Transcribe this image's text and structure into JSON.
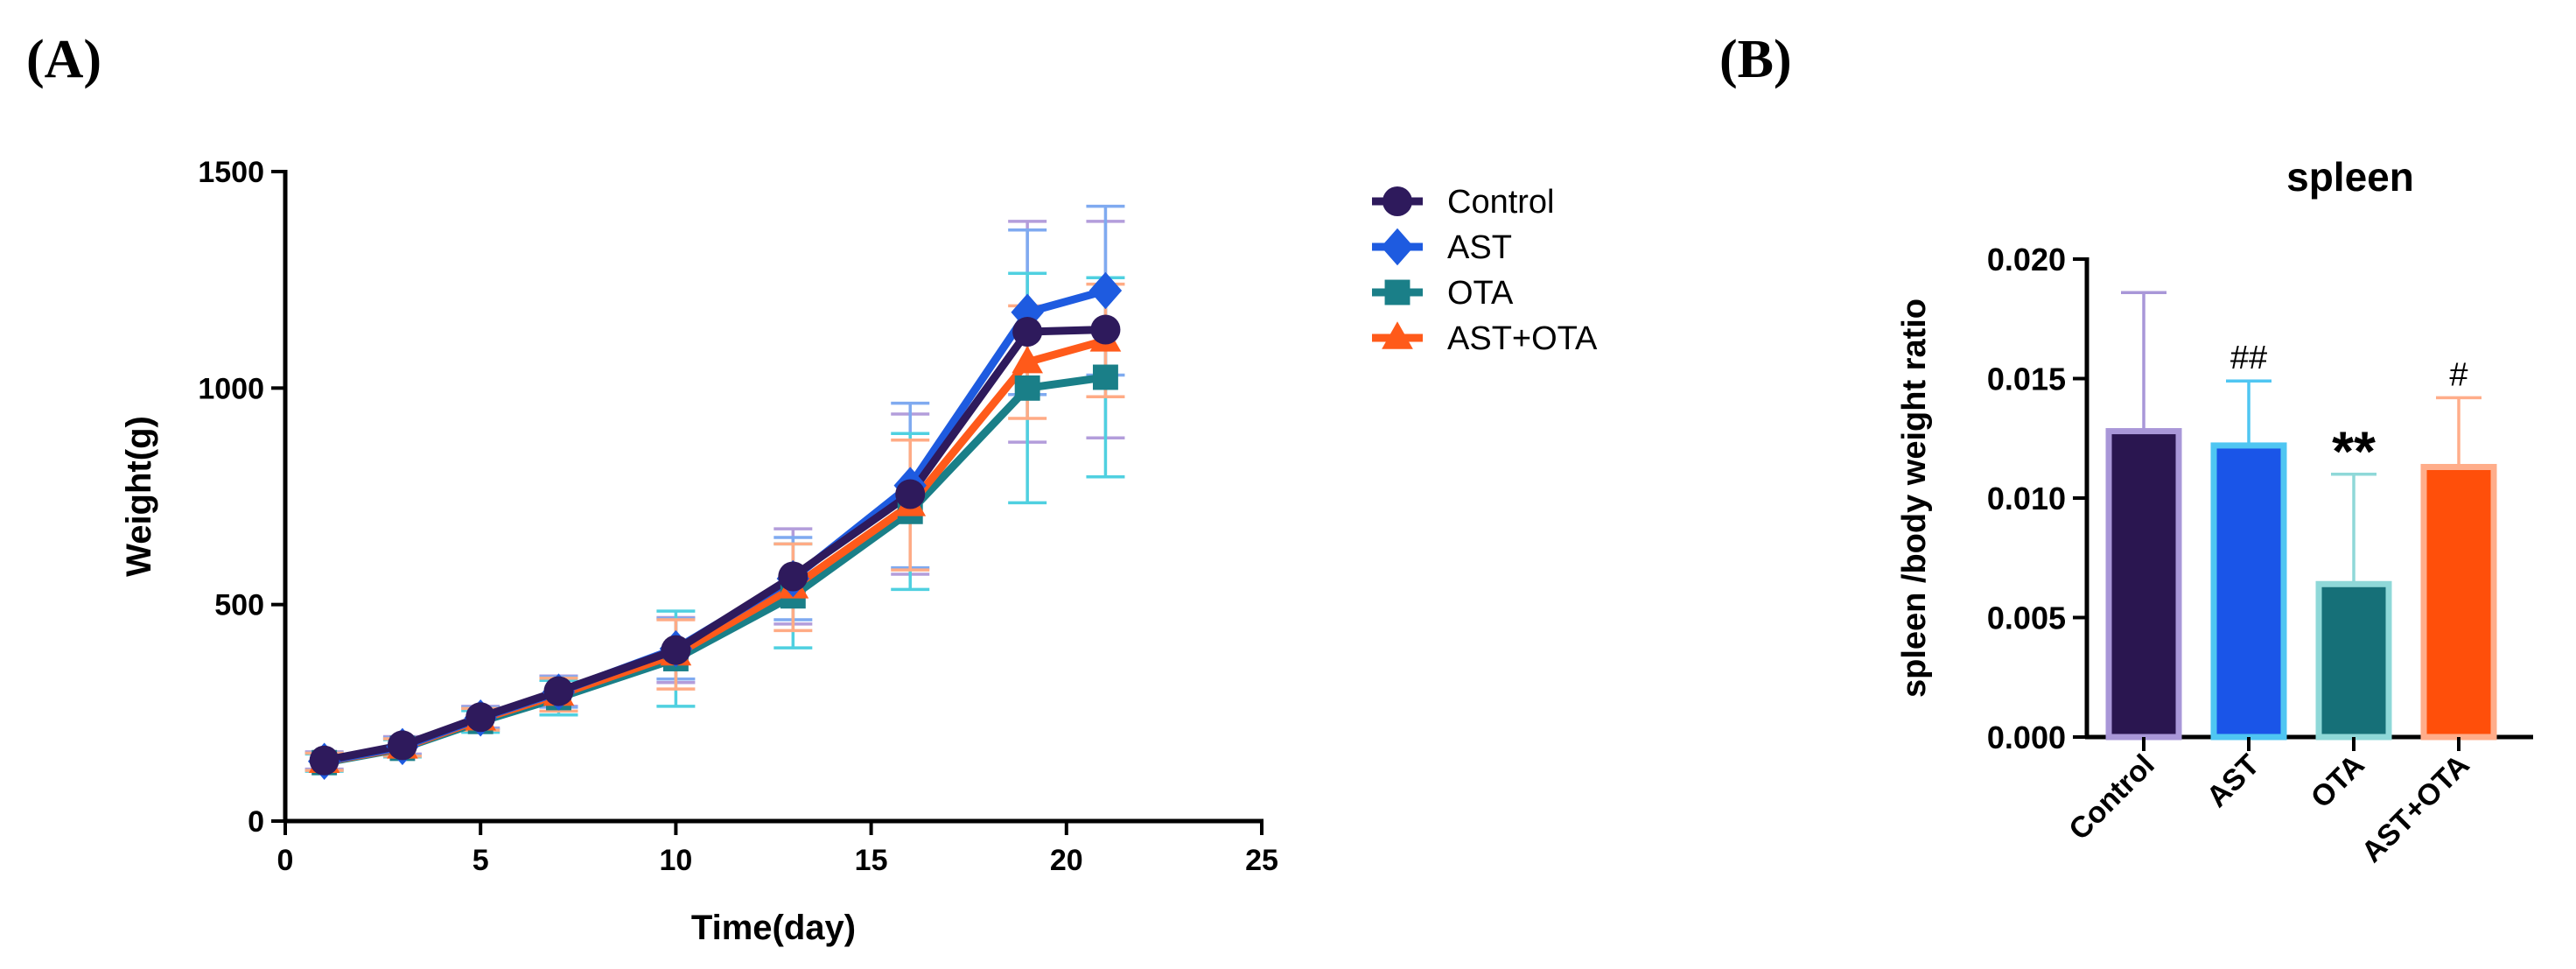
{
  "panel_labels": {
    "a": "(A)",
    "b": "(B)"
  },
  "chart_data": [
    {
      "type": "line",
      "panel": "(A)",
      "xlabel": "Time(day)",
      "ylabel": "Weight(g)",
      "xlim": [
        0,
        25
      ],
      "ylim": [
        0,
        1500
      ],
      "xticks": [
        0,
        5,
        10,
        15,
        20,
        25
      ],
      "yticks": [
        0,
        500,
        1000,
        1500
      ],
      "x": [
        1,
        3,
        5,
        7,
        10,
        13,
        16,
        19,
        21
      ],
      "series": [
        {
          "name": "Control",
          "color": "#2e1a5c",
          "errcolor": "#b39ddb",
          "marker": "circle",
          "values": [
            140,
            175,
            240,
            300,
            395,
            565,
            755,
            1130,
            1135
          ],
          "errors": [
            20,
            20,
            25,
            35,
            75,
            110,
            185,
            255,
            250
          ]
        },
        {
          "name": "AST",
          "color": "#1e5be0",
          "errcolor": "#7faaf0",
          "marker": "diamond",
          "values": [
            138,
            172,
            238,
            298,
            398,
            560,
            775,
            1175,
            1225
          ],
          "errors": [
            20,
            20,
            25,
            35,
            70,
            95,
            190,
            190,
            195
          ]
        },
        {
          "name": "OTA",
          "color": "#1a7f88",
          "errcolor": "#4fd0e0",
          "marker": "square",
          "values": [
            135,
            168,
            230,
            285,
            375,
            520,
            715,
            1000,
            1025
          ],
          "errors": [
            20,
            20,
            25,
            40,
            110,
            120,
            180,
            265,
            230
          ]
        },
        {
          "name": "AST+OTA",
          "color": "#ff5a1a",
          "errcolor": "#ffab85",
          "marker": "triangle",
          "values": [
            137,
            170,
            235,
            292,
            385,
            540,
            730,
            1060,
            1110
          ],
          "errors": [
            20,
            20,
            25,
            38,
            80,
            100,
            150,
            130,
            130
          ]
        }
      ]
    },
    {
      "type": "bar",
      "panel": "(B)",
      "title": "spleen",
      "xlabel": "",
      "ylabel": "spleen /body weight ratio",
      "ylim": [
        0,
        0.02
      ],
      "yticks": [
        "0.000",
        "0.005",
        "0.010",
        "0.015",
        "0.020"
      ],
      "categories": [
        "Control",
        "AST",
        "OTA",
        "AST+OTA"
      ],
      "values": [
        0.0128,
        0.0122,
        0.0064,
        0.0113
      ],
      "errors": [
        0.0058,
        0.0027,
        0.0046,
        0.0029
      ],
      "colors": [
        "#2a1650",
        "#1a55e8",
        "#167078",
        "#ff4f0a"
      ],
      "edgecolors": [
        "#a997d8",
        "#4fc6f2",
        "#8fd8d8",
        "#ffad8a"
      ],
      "annotations": [
        "",
        "##",
        "**",
        "#"
      ]
    }
  ]
}
